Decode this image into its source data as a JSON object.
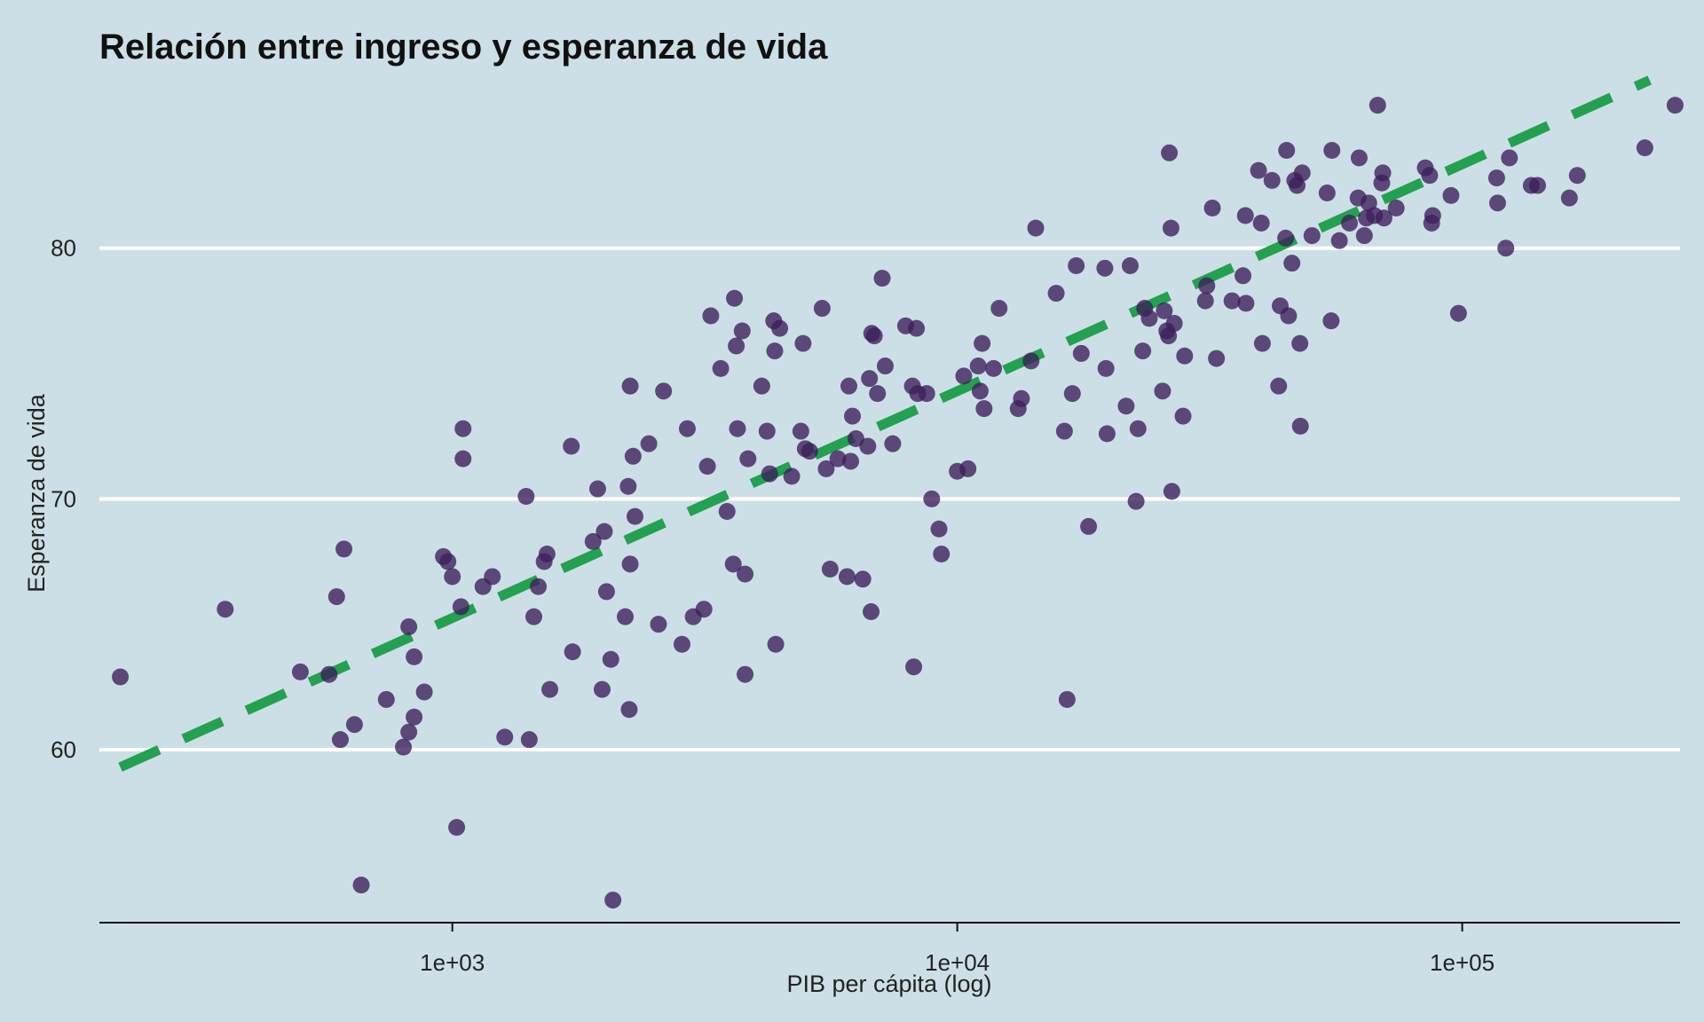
{
  "chart_data": {
    "type": "scatter",
    "title": "Relación entre ingreso y esperanza de vida",
    "xlabel": "PIB per cápita (log)",
    "ylabel": "Esperanza de vida",
    "x_scale": "log",
    "xlim": [
      200,
      270000
    ],
    "ylim": [
      53.1,
      86.5
    ],
    "x_ticks": [
      1000,
      10000,
      100000
    ],
    "x_tick_labels": [
      "1e+03",
      "1e+04",
      "1e+05"
    ],
    "y_ticks": [
      60,
      70,
      80
    ],
    "y_tick_labels": [
      "60",
      "70",
      "80"
    ],
    "grid": "horizontal",
    "colors": {
      "background": "#cddfe6",
      "points": "#3b1d5a",
      "trend": "#23a050",
      "grid": "#ffffff",
      "axis": "#111111"
    },
    "trend_line": {
      "style": "dashed",
      "x": [
        220,
        235000
      ],
      "y": [
        59.3,
        86.7
      ]
    },
    "points": [
      [
        220,
        62.9
      ],
      [
        355,
        65.6
      ],
      [
        500,
        63.1
      ],
      [
        570,
        63.0
      ],
      [
        590,
        66.1
      ],
      [
        600,
        60.4
      ],
      [
        610,
        68.0
      ],
      [
        640,
        61.0
      ],
      [
        660,
        54.6
      ],
      [
        740,
        62.0
      ],
      [
        800,
        60.1
      ],
      [
        820,
        60.7
      ],
      [
        820,
        64.9
      ],
      [
        840,
        63.7
      ],
      [
        840,
        61.3
      ],
      [
        880,
        62.3
      ],
      [
        960,
        67.7
      ],
      [
        980,
        67.5
      ],
      [
        1000,
        66.9
      ],
      [
        1020,
        56.9
      ],
      [
        1040,
        65.7
      ],
      [
        1050,
        72.8
      ],
      [
        1050,
        71.6
      ],
      [
        1150,
        66.5
      ],
      [
        1200,
        66.9
      ],
      [
        1270,
        60.5
      ],
      [
        1400,
        70.1
      ],
      [
        1420,
        60.4
      ],
      [
        1450,
        65.3
      ],
      [
        1480,
        66.5
      ],
      [
        1520,
        67.5
      ],
      [
        1540,
        67.8
      ],
      [
        1560,
        62.4
      ],
      [
        1720,
        72.1
      ],
      [
        1730,
        63.9
      ],
      [
        1900,
        68.3
      ],
      [
        1940,
        70.4
      ],
      [
        1980,
        62.4
      ],
      [
        2000,
        68.7
      ],
      [
        2020,
        66.3
      ],
      [
        2060,
        63.6
      ],
      [
        2080,
        54.0
      ],
      [
        2200,
        65.3
      ],
      [
        2230,
        70.5
      ],
      [
        2240,
        61.6
      ],
      [
        2250,
        74.5
      ],
      [
        2250,
        67.4
      ],
      [
        2280,
        71.7
      ],
      [
        2300,
        69.3
      ],
      [
        2450,
        72.2
      ],
      [
        2560,
        65.0
      ],
      [
        2620,
        74.3
      ],
      [
        2850,
        64.2
      ],
      [
        2920,
        72.8
      ],
      [
        3000,
        65.3
      ],
      [
        3150,
        65.6
      ],
      [
        3200,
        71.3
      ],
      [
        3250,
        77.3
      ],
      [
        3400,
        75.2
      ],
      [
        3500,
        69.5
      ],
      [
        3600,
        67.4
      ],
      [
        3620,
        78.0
      ],
      [
        3650,
        76.1
      ],
      [
        3670,
        72.8
      ],
      [
        3750,
        76.7
      ],
      [
        3800,
        63.0
      ],
      [
        3800,
        67.0
      ],
      [
        3850,
        71.6
      ],
      [
        4100,
        74.5
      ],
      [
        4200,
        72.7
      ],
      [
        4250,
        71.0
      ],
      [
        4330,
        77.1
      ],
      [
        4350,
        75.9
      ],
      [
        4370,
        64.2
      ],
      [
        4450,
        76.8
      ],
      [
        4700,
        70.9
      ],
      [
        4900,
        72.7
      ],
      [
        4950,
        76.2
      ],
      [
        5000,
        72.0
      ],
      [
        5100,
        71.9
      ],
      [
        5400,
        77.6
      ],
      [
        5500,
        71.2
      ],
      [
        5600,
        67.2
      ],
      [
        5800,
        71.6
      ],
      [
        6050,
        66.9
      ],
      [
        6100,
        74.5
      ],
      [
        6150,
        71.5
      ],
      [
        6200,
        73.3
      ],
      [
        6300,
        72.4
      ],
      [
        6500,
        66.8
      ],
      [
        6650,
        72.1
      ],
      [
        6700,
        74.8
      ],
      [
        6750,
        65.5
      ],
      [
        6770,
        76.6
      ],
      [
        6850,
        76.5
      ],
      [
        6950,
        74.2
      ],
      [
        7100,
        78.8
      ],
      [
        7200,
        75.3
      ],
      [
        7450,
        72.2
      ],
      [
        7900,
        76.9
      ],
      [
        8150,
        74.5
      ],
      [
        8200,
        63.3
      ],
      [
        8300,
        76.8
      ],
      [
        8350,
        74.2
      ],
      [
        8700,
        74.2
      ],
      [
        8900,
        70.0
      ],
      [
        9200,
        68.8
      ],
      [
        9300,
        67.8
      ],
      [
        10000,
        71.1
      ],
      [
        10300,
        74.9
      ],
      [
        10500,
        71.2
      ],
      [
        11000,
        75.3
      ],
      [
        11100,
        74.3
      ],
      [
        11200,
        76.2
      ],
      [
        11300,
        73.6
      ],
      [
        11800,
        75.2
      ],
      [
        12100,
        77.6
      ],
      [
        13200,
        73.6
      ],
      [
        13400,
        74.0
      ],
      [
        14000,
        75.5
      ],
      [
        14300,
        80.8
      ],
      [
        15700,
        78.2
      ],
      [
        16300,
        72.7
      ],
      [
        16500,
        62.0
      ],
      [
        16900,
        74.2
      ],
      [
        17200,
        79.3
      ],
      [
        17600,
        75.8
      ],
      [
        18200,
        68.9
      ],
      [
        19600,
        79.2
      ],
      [
        19700,
        75.2
      ],
      [
        19800,
        72.6
      ],
      [
        21600,
        73.7
      ],
      [
        22000,
        79.3
      ],
      [
        22600,
        69.9
      ],
      [
        22800,
        72.8
      ],
      [
        23300,
        75.9
      ],
      [
        23500,
        77.6
      ],
      [
        24000,
        77.2
      ],
      [
        25500,
        74.3
      ],
      [
        25700,
        77.5
      ],
      [
        26000,
        76.7
      ],
      [
        26200,
        76.5
      ],
      [
        26300,
        83.8
      ],
      [
        26500,
        80.8
      ],
      [
        26600,
        70.3
      ],
      [
        26900,
        77.0
      ],
      [
        28000,
        73.3
      ],
      [
        28200,
        75.7
      ],
      [
        31000,
        77.9
      ],
      [
        31200,
        78.5
      ],
      [
        32000,
        81.6
      ],
      [
        32600,
        75.6
      ],
      [
        35000,
        77.9
      ],
      [
        36800,
        78.9
      ],
      [
        37200,
        81.3
      ],
      [
        37300,
        77.8
      ],
      [
        39500,
        83.1
      ],
      [
        40000,
        81.0
      ],
      [
        40200,
        76.2
      ],
      [
        42000,
        82.7
      ],
      [
        43300,
        74.5
      ],
      [
        43600,
        77.7
      ],
      [
        44700,
        80.4
      ],
      [
        44900,
        83.9
      ],
      [
        45300,
        77.3
      ],
      [
        46000,
        79.4
      ],
      [
        46600,
        82.7
      ],
      [
        47100,
        82.5
      ],
      [
        47700,
        76.2
      ],
      [
        47800,
        72.9
      ],
      [
        48200,
        83.0
      ],
      [
        50400,
        80.5
      ],
      [
        54000,
        82.2
      ],
      [
        55000,
        77.1
      ],
      [
        55200,
        83.9
      ],
      [
        57100,
        80.3
      ],
      [
        59800,
        81.0
      ],
      [
        62200,
        82.0
      ],
      [
        62500,
        83.6
      ],
      [
        64000,
        80.5
      ],
      [
        64600,
        81.2
      ],
      [
        65300,
        81.8
      ],
      [
        67000,
        81.3
      ],
      [
        68000,
        85.7
      ],
      [
        69300,
        82.6
      ],
      [
        69600,
        83.0
      ],
      [
        70000,
        81.2
      ],
      [
        74000,
        81.6
      ],
      [
        84500,
        83.2
      ],
      [
        86200,
        82.9
      ],
      [
        87000,
        81.0
      ],
      [
        87400,
        81.3
      ],
      [
        95000,
        82.1
      ],
      [
        98300,
        77.4
      ],
      [
        117000,
        82.8
      ],
      [
        117500,
        81.8
      ],
      [
        122000,
        80.0
      ],
      [
        124000,
        83.6
      ],
      [
        137000,
        82.5
      ],
      [
        141000,
        82.5
      ],
      [
        163000,
        82.0
      ],
      [
        169000,
        82.9
      ],
      [
        230000,
        84.0
      ],
      [
        264000,
        85.7
      ]
    ]
  }
}
